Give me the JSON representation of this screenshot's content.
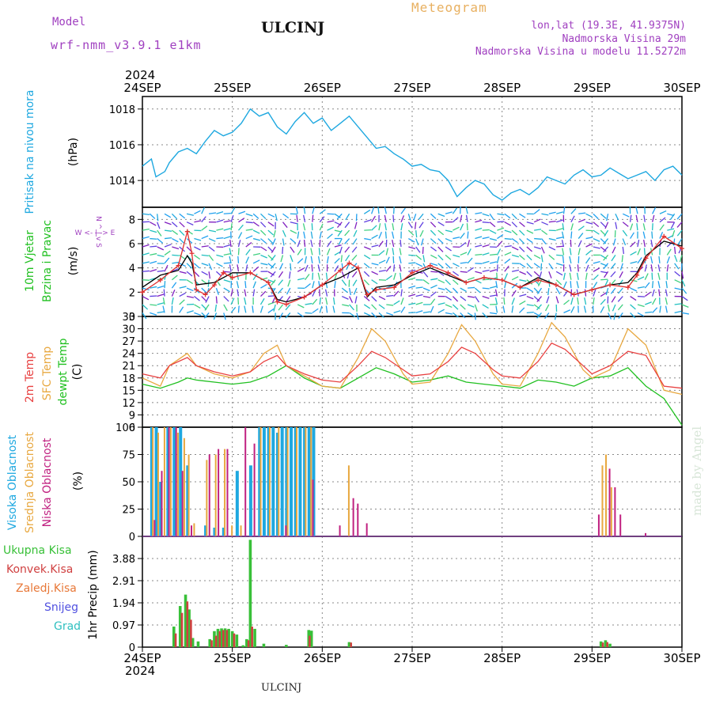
{
  "header": {
    "model_label": "Model",
    "model_value": "wrf-nmm_v3.9.1  e1km",
    "station": "ULCINJ",
    "product": "Meteogram",
    "lonlat": "lon,lat (19.3E, 41.9375N)",
    "altitude": "Nadmorska Visina 29m",
    "model_altitude": "Nadmorska Visina u modelu 11.5272m",
    "footer": "ULCINJ",
    "credit": "made by Angel"
  },
  "colors": {
    "pressure": "#1ea8e0",
    "wind_speed": "#e03030",
    "wind_gust": "#000000",
    "temp2m": "#e84040",
    "temp_sfc": "#e8a840",
    "dewpoint": "#20c020",
    "cloud_high": "#1ea8e0",
    "cloud_mid": "#e8a840",
    "cloud_low": "#c02080",
    "precip_total": "#38c038",
    "precip_conv": "#d04040",
    "precip_strat": "#e87838",
    "snow": "#5050e0",
    "hail": "#30c0c0"
  },
  "chart_data": [
    {
      "type": "line",
      "panel": "pressure",
      "ylabel": "Pritisak na nivou mora",
      "unit": "(hPa)",
      "ylim": [
        1012.5,
        1018.7
      ],
      "yticks": [
        1014,
        1016,
        1018
      ],
      "year_top": "2024",
      "year_bottom": "2024",
      "x_tick_labels": [
        "24SEP",
        "25SEP",
        "26SEP",
        "27SEP",
        "28SEP",
        "29SEP",
        "30SEP"
      ],
      "x_days": [
        0,
        6
      ],
      "series": [
        {
          "x": [
            0,
            0.1,
            0.15,
            0.25,
            0.3,
            0.4,
            0.5,
            0.6,
            0.7,
            0.8,
            0.9,
            1.0,
            1.1,
            1.2,
            1.3,
            1.4,
            1.5,
            1.6,
            1.7,
            1.8,
            1.9,
            2.0,
            2.1,
            2.2,
            2.3,
            2.4,
            2.5,
            2.6,
            2.7,
            2.8,
            2.9,
            3.0,
            3.1,
            3.2,
            3.3,
            3.4,
            3.5,
            3.6,
            3.7,
            3.8,
            3.9,
            4.0,
            4.1,
            4.2,
            4.3,
            4.4,
            4.5,
            4.6,
            4.7,
            4.8,
            4.9,
            5.0,
            5.1,
            5.2,
            5.3,
            5.4,
            5.5,
            5.6,
            5.7,
            5.8,
            5.9,
            6.0
          ],
          "y": [
            1014.8,
            1015.2,
            1014.2,
            1014.5,
            1015.0,
            1015.6,
            1015.8,
            1015.5,
            1016.2,
            1016.8,
            1016.5,
            1016.7,
            1017.2,
            1018.0,
            1017.6,
            1017.8,
            1017.0,
            1016.6,
            1017.3,
            1017.8,
            1017.2,
            1017.5,
            1016.8,
            1017.2,
            1017.6,
            1017.0,
            1016.4,
            1015.8,
            1015.9,
            1015.5,
            1015.2,
            1014.8,
            1014.9,
            1014.6,
            1014.5,
            1014.0,
            1013.1,
            1013.6,
            1014.0,
            1013.8,
            1013.2,
            1012.9,
            1013.3,
            1013.5,
            1013.2,
            1013.6,
            1014.2,
            1014.0,
            1013.8,
            1014.3,
            1014.6,
            1014.2,
            1014.3,
            1014.7,
            1014.4,
            1014.1,
            1014.3,
            1014.5,
            1014.0,
            1014.6,
            1014.8,
            1014.3
          ]
        }
      ]
    },
    {
      "type": "line",
      "panel": "wind",
      "ylabel": "10m Vjetar Brzina i Pravac",
      "unit": "(m/s)",
      "compass": "W  <- | ->  E",
      "compass_v": "N ^ | v S",
      "ylim": [
        0,
        9
      ],
      "yticks": [
        0,
        2,
        4,
        6,
        8
      ],
      "series": [
        {
          "name": "speed",
          "x": [
            0,
            0.2,
            0.4,
            0.5,
            0.55,
            0.6,
            0.7,
            0.8,
            0.9,
            1.0,
            1.2,
            1.4,
            1.5,
            1.6,
            1.8,
            2.0,
            2.2,
            2.3,
            2.4,
            2.5,
            2.6,
            2.8,
            3.0,
            3.2,
            3.4,
            3.6,
            3.8,
            4.0,
            4.2,
            4.4,
            4.6,
            4.8,
            5.0,
            5.2,
            5.4,
            5.5,
            5.6,
            5.8,
            6.0
          ],
          "y": [
            2.0,
            3.0,
            4.2,
            7.0,
            5.2,
            2.2,
            1.8,
            2.6,
            3.6,
            3.2,
            3.6,
            2.8,
            1.2,
            1.0,
            1.6,
            2.6,
            3.8,
            4.4,
            4.0,
            1.8,
            2.2,
            2.4,
            3.6,
            4.2,
            3.6,
            2.8,
            3.2,
            3.0,
            2.4,
            3.0,
            2.6,
            1.8,
            2.2,
            2.6,
            2.4,
            3.4,
            4.8,
            6.6,
            5.6
          ]
        },
        {
          "name": "gust",
          "x": [
            0,
            0.2,
            0.4,
            0.5,
            0.55,
            0.6,
            0.8,
            1.0,
            1.2,
            1.4,
            1.5,
            1.6,
            1.8,
            2.0,
            2.2,
            2.4,
            2.5,
            2.6,
            2.8,
            3.0,
            3.2,
            3.4,
            3.6,
            3.8,
            4.0,
            4.2,
            4.4,
            4.6,
            4.8,
            5.0,
            5.2,
            5.4,
            5.5,
            5.6,
            5.8,
            6.0
          ],
          "y": [
            2.4,
            3.4,
            3.8,
            5.0,
            4.4,
            2.6,
            2.8,
            3.6,
            3.6,
            2.8,
            1.4,
            1.2,
            1.6,
            2.6,
            3.2,
            4.0,
            1.6,
            2.4,
            2.6,
            3.4,
            4.0,
            3.4,
            2.8,
            3.2,
            3.0,
            2.4,
            3.2,
            2.6,
            1.8,
            2.2,
            2.6,
            2.8,
            3.6,
            5.0,
            6.2,
            5.8
          ]
        }
      ]
    },
    {
      "type": "line",
      "panel": "temperature",
      "ylabel": "2m Temp",
      "ylabel2": "SFC Temp",
      "ylabel3": "dewpt Temp",
      "unit": "(C)",
      "ylim": [
        6,
        33
      ],
      "yticks": [
        6,
        9,
        12,
        15,
        18,
        21,
        24,
        27,
        30,
        33
      ],
      "series": [
        {
          "name": "2m Temp",
          "x": [
            0,
            0.2,
            0.3,
            0.5,
            0.6,
            0.8,
            1.0,
            1.2,
            1.35,
            1.5,
            1.6,
            1.8,
            2.0,
            2.2,
            2.4,
            2.55,
            2.7,
            2.9,
            3.0,
            3.2,
            3.4,
            3.55,
            3.7,
            3.9,
            4.0,
            4.2,
            4.4,
            4.55,
            4.7,
            4.9,
            5.0,
            5.2,
            5.4,
            5.6,
            5.8,
            6.0
          ],
          "y": [
            19,
            18,
            21,
            23,
            21,
            19.5,
            18.5,
            19.5,
            22,
            23.5,
            21,
            19,
            17.5,
            17,
            21,
            24.5,
            23,
            20,
            18.5,
            19,
            22,
            25.5,
            24,
            20,
            18.5,
            18,
            22,
            26.5,
            25,
            21,
            19,
            21,
            24.5,
            23.5,
            16,
            15.5
          ]
        },
        {
          "name": "SFC Temp",
          "x": [
            0,
            0.2,
            0.3,
            0.5,
            0.6,
            0.8,
            1.0,
            1.2,
            1.35,
            1.5,
            1.6,
            1.8,
            2.0,
            2.2,
            2.4,
            2.55,
            2.7,
            2.9,
            3.0,
            3.2,
            3.4,
            3.55,
            3.7,
            3.9,
            4.0,
            4.2,
            4.4,
            4.55,
            4.7,
            4.9,
            5.0,
            5.2,
            5.4,
            5.6,
            5.8,
            6.0
          ],
          "y": [
            18,
            16,
            21,
            24,
            21,
            19,
            18,
            19.5,
            24,
            26,
            21,
            18.5,
            16,
            15.5,
            23,
            30,
            27,
            19,
            16.5,
            17,
            24,
            31,
            27,
            19,
            16.5,
            16,
            24,
            31.5,
            28,
            20,
            18,
            20,
            30,
            26,
            15,
            14
          ]
        },
        {
          "name": "dewpt Temp",
          "x": [
            0,
            0.2,
            0.4,
            0.5,
            0.6,
            0.8,
            1.0,
            1.2,
            1.4,
            1.6,
            1.8,
            2.0,
            2.2,
            2.4,
            2.6,
            2.8,
            3.0,
            3.2,
            3.4,
            3.6,
            3.8,
            4.0,
            4.2,
            4.4,
            4.6,
            4.8,
            5.0,
            5.2,
            5.4,
            5.6,
            5.8,
            6.0
          ],
          "y": [
            16.5,
            15.5,
            17,
            18,
            17.5,
            17,
            16.5,
            17,
            18.5,
            21,
            18,
            16,
            15.5,
            18,
            20.5,
            19,
            17,
            17.5,
            18.5,
            17,
            16.5,
            16,
            15.5,
            17.5,
            17,
            16,
            18,
            18.5,
            20.5,
            16,
            13,
            6.5
          ]
        }
      ]
    },
    {
      "type": "bar",
      "panel": "clouds",
      "ylabel": "Visoka Oblacnost",
      "ylabel2": "Srednja Oblacnost",
      "ylabel3": "Niska Oblacnost",
      "unit": "(%)",
      "ylim": [
        0,
        100
      ],
      "yticks": [
        0,
        25,
        50,
        75,
        100
      ],
      "series": [
        {
          "name": "Visoka Oblacnost",
          "x": [
            0.1,
            0.15,
            0.2,
            0.28,
            0.35,
            0.42,
            0.5,
            0.7,
            0.8,
            0.9,
            1.05,
            1.2,
            1.3,
            1.35,
            1.4,
            1.45,
            1.5,
            1.55,
            1.6,
            1.65,
            1.7,
            1.75,
            1.8,
            1.85,
            1.9
          ],
          "values": [
            100,
            100,
            50,
            100,
            100,
            100,
            65,
            10,
            8,
            8,
            60,
            65,
            100,
            100,
            100,
            100,
            95,
            100,
            100,
            100,
            100,
            100,
            100,
            100,
            100
          ]
        },
        {
          "name": "Srednja Oblacnost",
          "x": [
            0.12,
            0.18,
            0.25,
            0.32,
            0.4,
            0.47,
            0.52,
            0.58,
            0.72,
            0.82,
            0.92,
            1.0,
            1.1,
            1.32,
            1.42,
            1.52,
            1.62,
            1.72,
            1.82,
            1.88,
            2.3,
            5.12,
            5.16,
            5.22
          ],
          "values": [
            100,
            95,
            100,
            100,
            95,
            90,
            75,
            12,
            70,
            75,
            80,
            10,
            10,
            100,
            100,
            100,
            100,
            100,
            100,
            100,
            65,
            65,
            75,
            45
          ]
        },
        {
          "name": "Niska Oblacnost",
          "x": [
            0.14,
            0.22,
            0.3,
            0.38,
            0.45,
            0.55,
            0.75,
            0.85,
            0.95,
            1.15,
            1.25,
            1.6,
            1.9,
            2.2,
            2.35,
            2.4,
            2.5,
            5.08,
            5.2,
            5.26,
            5.32,
            5.6
          ],
          "values": [
            15,
            60,
            100,
            100,
            60,
            10,
            75,
            80,
            80,
            100,
            85,
            10,
            52,
            10,
            35,
            30,
            12,
            20,
            62,
            45,
            20,
            3
          ]
        }
      ]
    },
    {
      "type": "bar",
      "panel": "precip",
      "ylabel": "1hr Precip",
      "unit": "(mm)",
      "ylim": [
        0,
        4.85
      ],
      "yticks": [
        0,
        0.97,
        1.94,
        2.91,
        3.88
      ],
      "legend": [
        "Ukupna Kisa",
        "Konvek.Kisa",
        "Zaledj.Kisa",
        "Snijeg",
        "Grad"
      ],
      "series": [
        {
          "name": "Ukupna Kisa",
          "x": [
            0.35,
            0.42,
            0.48,
            0.52,
            0.56,
            0.62,
            0.75,
            0.8,
            0.84,
            0.88,
            0.92,
            0.96,
            1.0,
            1.05,
            1.12,
            1.16,
            1.2,
            1.25,
            1.35,
            1.6,
            1.85,
            1.88,
            2.3,
            5.1,
            5.15,
            5.2
          ],
          "values": [
            0.9,
            1.8,
            2.3,
            1.65,
            0.4,
            0.25,
            0.35,
            0.7,
            0.8,
            0.82,
            0.82,
            0.8,
            0.7,
            0.55,
            0.08,
            0.35,
            4.7,
            0.8,
            0.15,
            0.1,
            0.75,
            0.72,
            0.22,
            0.25,
            0.3,
            0.15
          ]
        },
        {
          "name": "Konvek.Kisa",
          "x": [
            0.37,
            0.44,
            0.5,
            0.54,
            0.77,
            0.82,
            0.86,
            0.9,
            0.94,
            1.02,
            1.18,
            1.22,
            1.86,
            2.32,
            5.12,
            5.17
          ],
          "values": [
            0.6,
            1.5,
            2.0,
            1.2,
            0.3,
            0.5,
            0.7,
            0.75,
            0.75,
            0.6,
            0.3,
            0.9,
            0.5,
            0.2,
            0.2,
            0.22
          ]
        }
      ]
    }
  ]
}
